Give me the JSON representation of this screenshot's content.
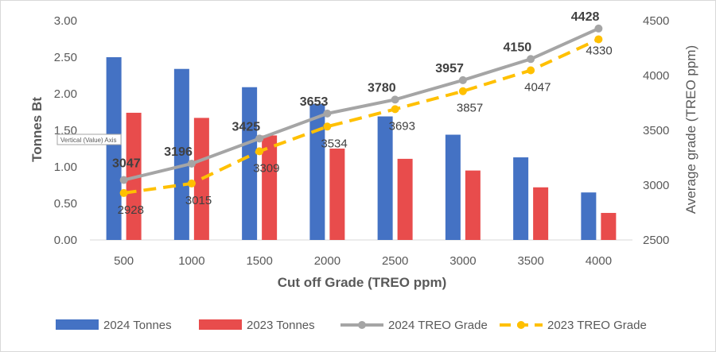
{
  "chart_data": {
    "type": "bar+line",
    "categories": [
      "500",
      "1000",
      "1500",
      "2000",
      "2500",
      "3000",
      "3500",
      "4000"
    ],
    "xlabel": "Cut off Grade (TREO ppm)",
    "ylabel": "Tonnes Bt",
    "y2label": "Average grade (TREO ppm)",
    "ylim": [
      0,
      3.0
    ],
    "yticks": [
      "0.00",
      "0.50",
      "1.00",
      "1.50",
      "2.00",
      "2.50",
      "3.00"
    ],
    "y2lim": [
      2500,
      4500
    ],
    "y2ticks": [
      "2500",
      "3000",
      "3500",
      "4000",
      "4500"
    ],
    "grid": false,
    "legend_position": "bottom",
    "tooltip": "Vertical (Value) Axis",
    "series": [
      {
        "name": "2024 Tonnes",
        "kind": "bar",
        "axis": "left",
        "color": "#4472c4",
        "values": [
          2.5,
          2.34,
          2.09,
          1.86,
          1.69,
          1.44,
          1.13,
          0.65
        ]
      },
      {
        "name": "2023 Tonnes",
        "kind": "bar",
        "axis": "left",
        "color": "#e84c4c",
        "values": [
          1.74,
          1.67,
          1.43,
          1.25,
          1.11,
          0.95,
          0.72,
          0.37
        ]
      },
      {
        "name": "2024 TREO Grade",
        "kind": "line",
        "axis": "right",
        "color": "#a5a5a5",
        "values": [
          3047,
          3196,
          3425,
          3653,
          3780,
          3957,
          4150,
          4428
        ],
        "labels": [
          "3047",
          "3196",
          "3425",
          "3653",
          "3780",
          "3957",
          "4150",
          "4428"
        ]
      },
      {
        "name": "2023 TREO Grade",
        "kind": "line-dashed",
        "axis": "right",
        "color": "#ffc000",
        "values": [
          2928,
          3015,
          3309,
          3534,
          3693,
          3857,
          4047,
          4330
        ],
        "labels": [
          "2928",
          "3015",
          "3309",
          "3534",
          "3693",
          "3857",
          "4047",
          "4330"
        ]
      }
    ]
  }
}
